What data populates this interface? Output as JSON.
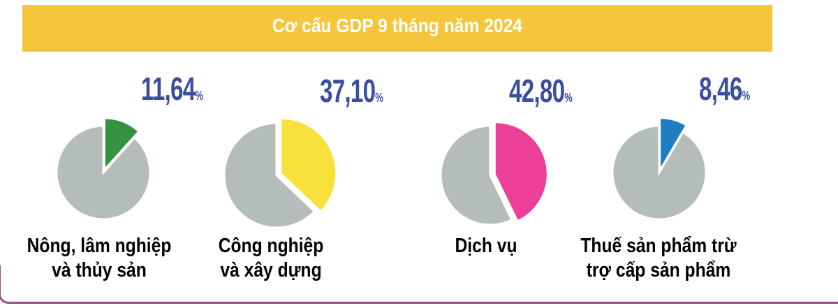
{
  "chart_data": {
    "type": "pie",
    "title": "Cơ cấu GDP 9 tháng năm 2024",
    "unit": "%",
    "items": [
      {
        "label_line1": "Nông, lâm nghiệp",
        "label_line2": "và thủy sản",
        "value": 11.64,
        "value_text": "11,64",
        "color": "#35923f"
      },
      {
        "label_line1": "Công nghiệp",
        "label_line2": "và xây dựng",
        "value": 37.1,
        "value_text": "37,10",
        "color": "#f8e13b"
      },
      {
        "label_line1": "Dịch vụ",
        "label_line2": "",
        "value": 42.8,
        "value_text": "42,80",
        "color": "#ec3f97"
      },
      {
        "label_line1": "Thuế sản phẩm trừ",
        "label_line2": "trợ cấp sản phẩm",
        "value": 8.46,
        "value_text": "8,46",
        "color": "#1f7dc1"
      }
    ],
    "remainder_color": "#b5bdbb"
  }
}
